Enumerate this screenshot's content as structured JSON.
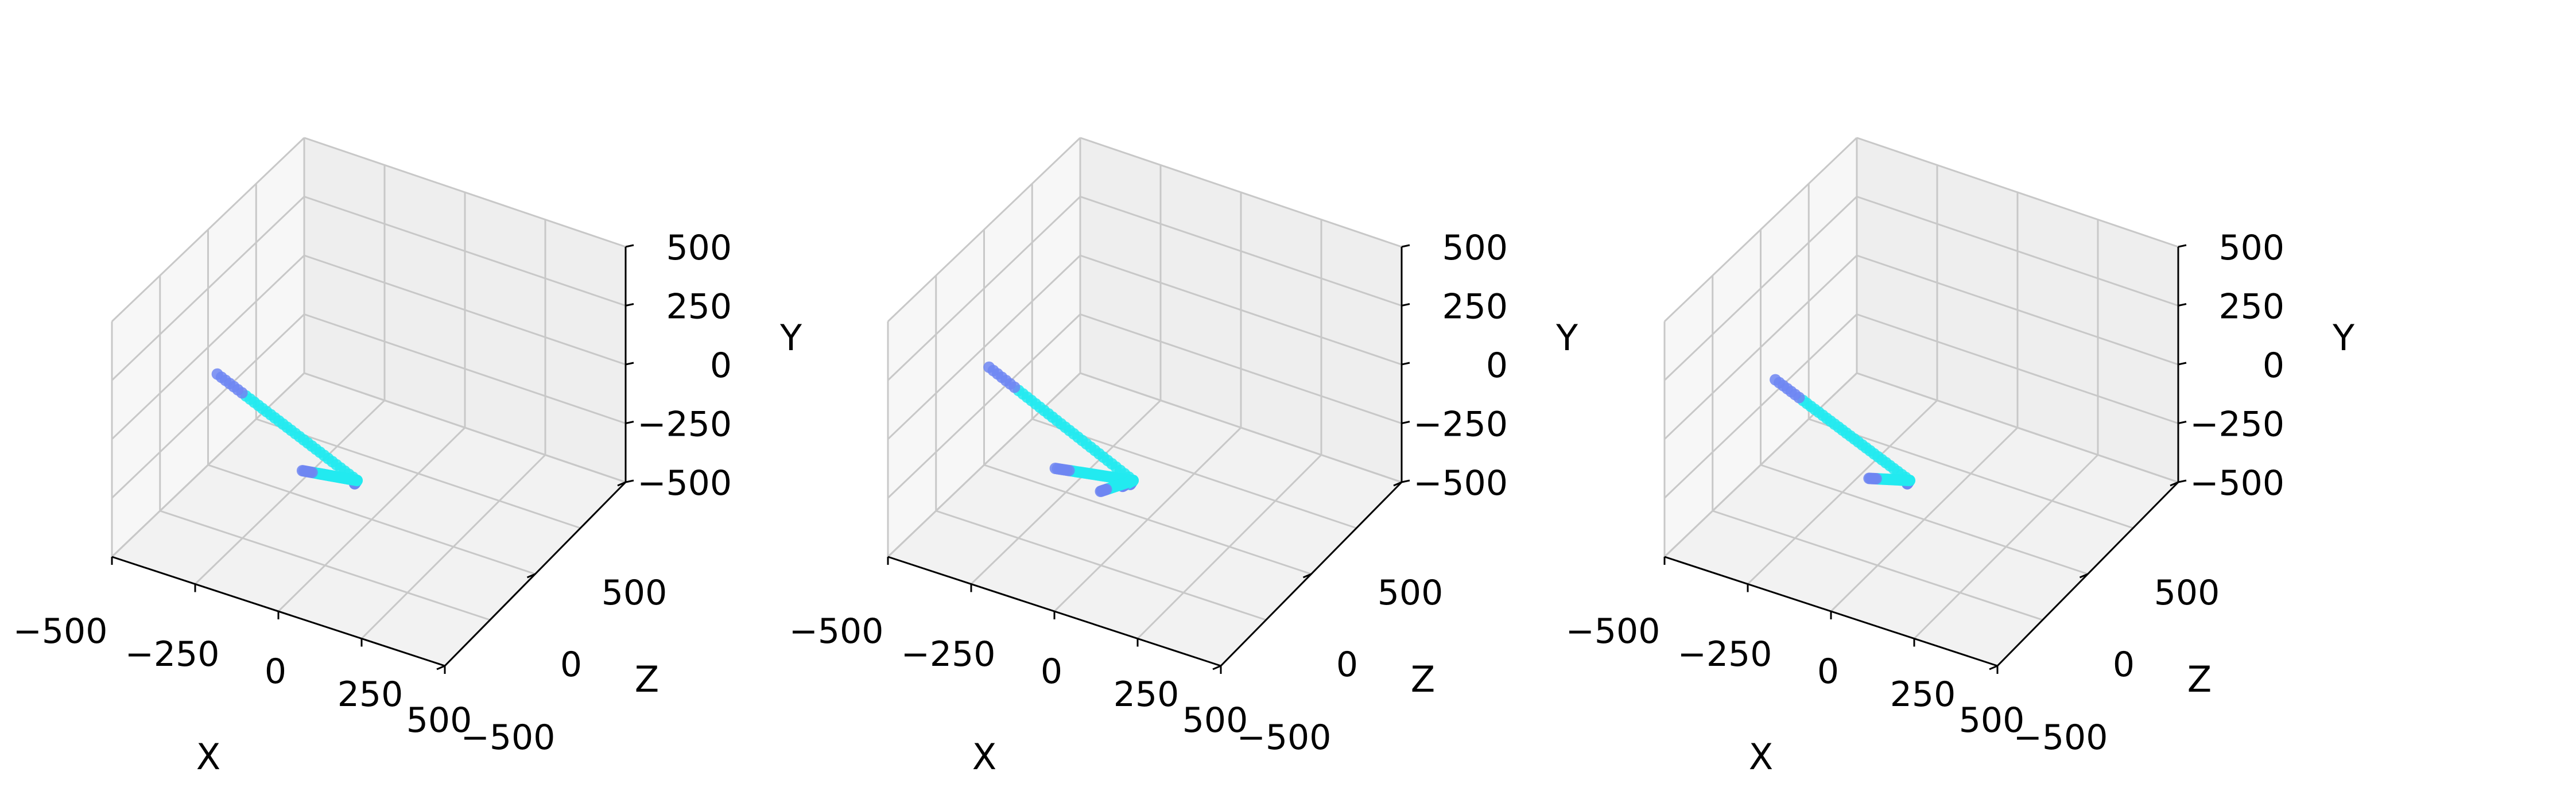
{
  "figure": {
    "description_colors": {
      "pane_floor": "#f2f2f2",
      "pane_wall_left": "#f7f7f7",
      "pane_wall_back": "#eeeeee",
      "grid": "#c8c8c8",
      "axis_line": "#000000",
      "point_main": "#22eaf0",
      "point_alt": "#6f86f2"
    }
  },
  "chart_data": [
    {
      "type": "scatter",
      "projection": "3d",
      "xlabel": "X",
      "ylabel": "Y",
      "zlabel": "Z",
      "xlim": [
        -500,
        500
      ],
      "ylim": [
        -500,
        500
      ],
      "zlim": [
        -800,
        800
      ],
      "x_ticks": [
        "−500",
        "−250",
        "0",
        "250",
        "500"
      ],
      "y_ticks": [
        "−500",
        "−250",
        "0",
        "250",
        "500"
      ],
      "z_ticks": [
        "−500",
        "0",
        "500"
      ],
      "grid": true,
      "series": [
        {
          "values": [
            {
              "x": 200,
              "y": 100,
              "z": 700
            },
            {
              "x": -400,
              "y": 30,
              "z": 200
            },
            {
              "x": 175,
              "y": 50,
              "z": 650
            },
            {
              "x": -150,
              "y": -350,
              "z": 50
            },
            {
              "x": 0,
              "y": 0,
              "z": 600
            }
          ]
        }
      ]
    },
    {
      "type": "scatter",
      "projection": "3d",
      "xlabel": "X",
      "ylabel": "Y",
      "zlabel": "Z",
      "xlim": [
        -500,
        500
      ],
      "ylim": [
        -500,
        500
      ],
      "zlim": [
        -800,
        800
      ],
      "x_ticks": [
        "−500",
        "−250",
        "0",
        "250",
        "500"
      ],
      "y_ticks": [
        "−500",
        "−250",
        "0",
        "250",
        "500"
      ],
      "z_ticks": [
        "−500",
        "0",
        "500"
      ],
      "grid": true,
      "series": [
        {
          "values": [
            {
              "x": 200,
              "y": 100,
              "z": 700
            },
            {
              "x": -420,
              "y": 40,
              "z": 180
            },
            {
              "x": 170,
              "y": 40,
              "z": 640
            },
            {
              "x": -30,
              "y": -300,
              "z": 150
            },
            {
              "x": -250,
              "y": -350,
              "z": 100
            },
            {
              "x": -150,
              "y": -450,
              "z": 0
            }
          ]
        }
      ]
    },
    {
      "type": "scatter",
      "projection": "3d",
      "xlabel": "X",
      "ylabel": "Y",
      "zlabel": "Z",
      "xlim": [
        -500,
        500
      ],
      "ylim": [
        -500,
        500
      ],
      "zlim": [
        -800,
        800
      ],
      "x_ticks": [
        "−500",
        "−250",
        "0",
        "250",
        "500"
      ],
      "y_ticks": [
        "−500",
        "−250",
        "0",
        "250",
        "500"
      ],
      "z_ticks": [
        "−500",
        "0",
        "500"
      ],
      "grid": true,
      "series": [
        {
          "values": [
            {
              "x": 200,
              "y": 100,
              "z": 700
            },
            {
              "x": -380,
              "y": 20,
              "z": 210
            },
            {
              "x": 175,
              "y": 50,
              "z": 650
            },
            {
              "x": -160,
              "y": -380,
              "z": 40
            }
          ]
        }
      ]
    }
  ]
}
